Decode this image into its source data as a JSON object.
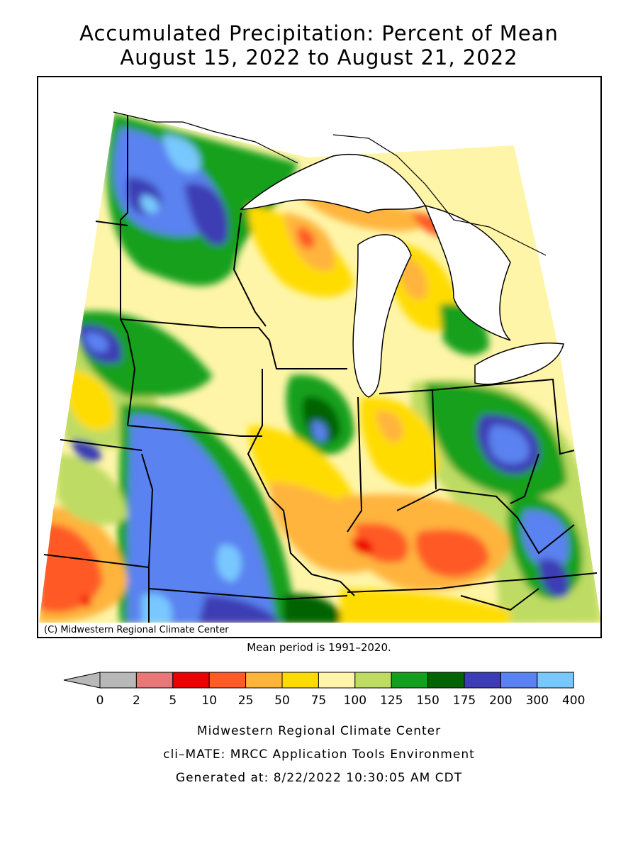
{
  "title": {
    "line1": "Accumulated Precipitation: Percent of Mean",
    "line2": "August 15, 2022 to August 21, 2022"
  },
  "map": {
    "copyright": "(C) Midwestern Regional Climate Center",
    "mean_period": "Mean period is 1991–2020."
  },
  "legend": {
    "under_color": "#b8b8b8",
    "bins": [
      {
        "color": "#b8b8b8"
      },
      {
        "color": "#e87878"
      },
      {
        "color": "#ee0000"
      },
      {
        "color": "#ff5a28"
      },
      {
        "color": "#ffb43c"
      },
      {
        "color": "#ffdc00"
      },
      {
        "color": "#fff5a8"
      },
      {
        "color": "#bedc64"
      },
      {
        "color": "#14a01e"
      },
      {
        "color": "#006400"
      },
      {
        "color": "#3c3cb4"
      },
      {
        "color": "#5a82f0"
      },
      {
        "color": "#78c8ff"
      }
    ],
    "ticks": [
      "0",
      "2",
      "5",
      "10",
      "25",
      "50",
      "75",
      "100",
      "125",
      "150",
      "175",
      "200",
      "300",
      "400"
    ]
  },
  "footer": {
    "line1": "Midwestern Regional Climate Center",
    "line2": "cli–MATE: MRCC Application Tools Environment",
    "line3": "Generated at: 8/22/2022 10:30:05 AM CDT"
  }
}
